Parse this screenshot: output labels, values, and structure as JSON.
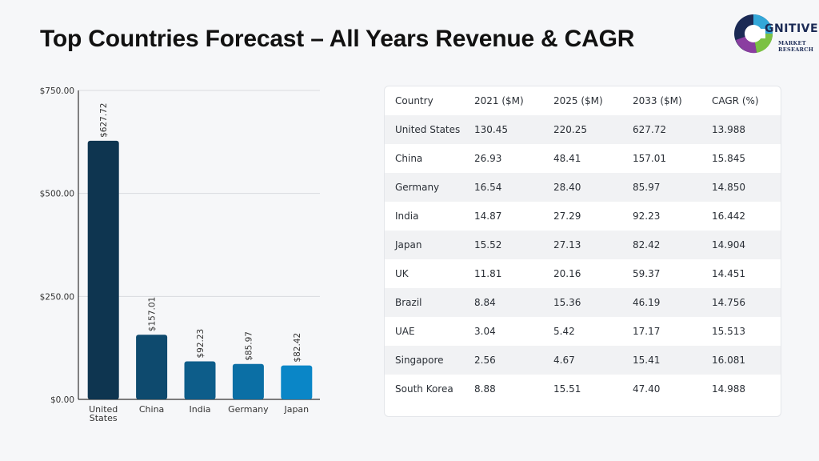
{
  "title": "Top Countries Forecast – All Years Revenue & CAGR",
  "logo": {
    "brand": "GNITIVE",
    "sub1": "MARKET",
    "sub2": "RESEARCH"
  },
  "colors": {
    "bars": [
      "#0e3550",
      "#0e4a6e",
      "#0d5d8a",
      "#0b6fa5",
      "#0a86c7"
    ],
    "grid": "#d9dbde",
    "axis": "#333333"
  },
  "chart_data": {
    "type": "bar",
    "categories": [
      "United States",
      "China",
      "India",
      "Germany",
      "Japan"
    ],
    "category_lines": [
      [
        "United",
        "States"
      ],
      [
        "China"
      ],
      [
        "India"
      ],
      [
        "Germany"
      ],
      [
        "Japan"
      ]
    ],
    "values": [
      627.72,
      157.01,
      92.23,
      85.97,
      82.42
    ],
    "value_labels": [
      "$627.72",
      "$157.01",
      "$92.23",
      "$85.97",
      "$82.42"
    ],
    "yticks": [
      0,
      250,
      500,
      750
    ],
    "ytick_labels": [
      "$0.00",
      "$250.00",
      "$500.00",
      "$750.00"
    ],
    "ylim": [
      0,
      750
    ],
    "grid": true,
    "title": "",
    "xlabel": "",
    "ylabel": ""
  },
  "table": {
    "headers": [
      "Country",
      "2021 ($M)",
      "2025 ($M)",
      "2033 ($M)",
      "CAGR (%)"
    ],
    "rows": [
      [
        "United States",
        "130.45",
        "220.25",
        "627.72",
        "13.988"
      ],
      [
        "China",
        "26.93",
        "48.41",
        "157.01",
        "15.845"
      ],
      [
        "Germany",
        "16.54",
        "28.40",
        "85.97",
        "14.850"
      ],
      [
        "India",
        "14.87",
        "27.29",
        "92.23",
        "16.442"
      ],
      [
        "Japan",
        "15.52",
        "27.13",
        "82.42",
        "14.904"
      ],
      [
        "UK",
        "11.81",
        "20.16",
        "59.37",
        "14.451"
      ],
      [
        "Brazil",
        "8.84",
        "15.36",
        "46.19",
        "14.756"
      ],
      [
        "UAE",
        "3.04",
        "5.42",
        "17.17",
        "15.513"
      ],
      [
        "Singapore",
        "2.56",
        "4.67",
        "15.41",
        "16.081"
      ],
      [
        "South Korea",
        "8.88",
        "15.51",
        "47.40",
        "14.988"
      ]
    ]
  }
}
